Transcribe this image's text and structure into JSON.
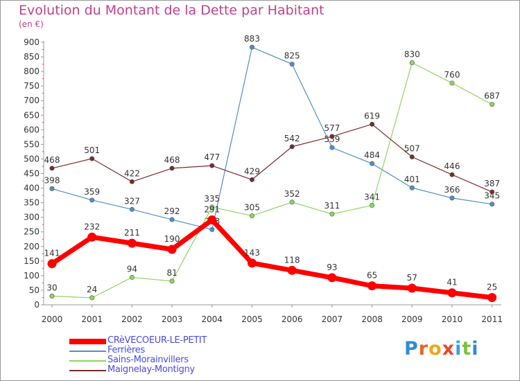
{
  "header": {
    "title": "Evolution du Montant de la Dette par Habitant",
    "subtitle": "(en €)"
  },
  "logo": {
    "letters": [
      "P",
      "r",
      "o",
      "x",
      "i",
      "t",
      "i"
    ],
    "colors": [
      "#2e8bd6",
      "#e8622a",
      "#f2a51a",
      "#e84a2a",
      "#3aa0e0",
      "#7cc242",
      "#2e8bd6"
    ]
  },
  "chart_data": {
    "type": "line",
    "title": "Evolution du Montant de la Dette par Habitant",
    "ylabel": "(en €)",
    "xlabel": "",
    "x": [
      "2000",
      "2001",
      "2002",
      "2003",
      "2004",
      "2005",
      "2006",
      "2007",
      "2008",
      "2009",
      "2010",
      "2011"
    ],
    "ylim": [
      0,
      900
    ],
    "yticks": [
      "0",
      "50",
      "100",
      "150",
      "200",
      "250",
      "300",
      "350",
      "400",
      "450",
      "500",
      "550",
      "600",
      "650",
      "700",
      "750",
      "800",
      "850",
      "900"
    ],
    "grid": false,
    "legend_position": "bottom-left",
    "series": [
      {
        "name": "Ferrières",
        "color": "#4f8fc8",
        "values": [
          398,
          359,
          327,
          292,
          258,
          883,
          825,
          539,
          484,
          401,
          366,
          345
        ]
      },
      {
        "name": "Sains-Morainvillers",
        "color": "#8fd45f",
        "values": [
          30,
          24,
          94,
          81,
          335,
          305,
          352,
          311,
          341,
          830,
          760,
          687
        ]
      },
      {
        "name": "Maignelay-Montigny",
        "color": "#7a2a2a",
        "values": [
          468,
          501,
          422,
          468,
          477,
          429,
          542,
          577,
          619,
          507,
          446,
          387
        ]
      },
      {
        "name": "CRèVECOEUR-LE-PETIT",
        "color": "#ff0000",
        "values": [
          141,
          232,
          211,
          190,
          291,
          143,
          118,
          93,
          65,
          57,
          41,
          25
        ]
      }
    ],
    "data_labels": [
      [
        "398",
        "359",
        "327",
        "292",
        "258",
        "883",
        "825",
        "539",
        "484",
        "401",
        "366",
        "345"
      ],
      [
        "30",
        "24",
        "94",
        "81",
        "335",
        "305",
        "352",
        "311",
        "341",
        "830",
        "760",
        "687"
      ],
      [
        "468",
        "501",
        "422",
        "468",
        "477",
        "429",
        "542",
        "577",
        "619",
        "507",
        "446",
        "387"
      ],
      [
        "141",
        "232",
        "211",
        "190",
        "291",
        "143",
        "118",
        "93",
        "65",
        "57",
        "41",
        "25"
      ]
    ]
  },
  "legend": {
    "items": [
      {
        "label": "CRèVECOEUR-LE-PETIT",
        "color": "#ff0000"
      },
      {
        "label": "Ferrières",
        "color": "#4f8fc8"
      },
      {
        "label": "Sains-Morainvillers",
        "color": "#8fd45f"
      },
      {
        "label": "Maignelay-Montigny",
        "color": "#7a2a2a"
      }
    ]
  }
}
